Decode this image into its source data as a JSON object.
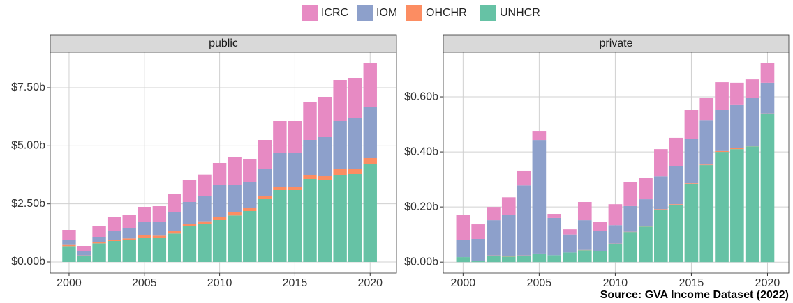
{
  "caption": "Source: GVA Income Dataset (2022)",
  "chart_data": [
    {
      "type": "bar",
      "title": "public",
      "x": [
        2000,
        2001,
        2002,
        2003,
        2004,
        2005,
        2006,
        2007,
        2008,
        2009,
        2010,
        2011,
        2012,
        2013,
        2014,
        2015,
        2016,
        2017,
        2018,
        2019,
        2020
      ],
      "series": [
        {
          "name": "ICRC",
          "color": "#e78ac3",
          "values": [
            0.42,
            0.21,
            0.45,
            0.6,
            0.54,
            0.66,
            0.66,
            0.78,
            0.96,
            0.93,
            0.96,
            1.2,
            1.02,
            1.23,
            1.35,
            1.41,
            1.62,
            1.74,
            1.77,
            1.74,
            1.89
          ]
        },
        {
          "name": "IOM",
          "color": "#8da0cb",
          "values": [
            0.23,
            0.2,
            0.22,
            0.36,
            0.46,
            0.57,
            0.61,
            0.84,
            0.93,
            1.08,
            1.38,
            1.2,
            1.11,
            1.17,
            1.47,
            1.44,
            1.5,
            1.68,
            2.07,
            2.16,
            2.22
          ]
        },
        {
          "name": "OHCHR",
          "color": "#fc8d62",
          "values": [
            0.05,
            0.03,
            0.06,
            0.06,
            0.08,
            0.09,
            0.09,
            0.1,
            0.12,
            0.1,
            0.12,
            0.13,
            0.12,
            0.15,
            0.15,
            0.15,
            0.18,
            0.18,
            0.24,
            0.24,
            0.24
          ]
        },
        {
          "name": "UNHCR",
          "color": "#66c2a5",
          "values": [
            0.68,
            0.25,
            0.8,
            0.9,
            0.93,
            1.05,
            1.04,
            1.22,
            1.53,
            1.65,
            1.8,
            2.0,
            2.19,
            2.7,
            3.09,
            3.09,
            3.57,
            3.51,
            3.75,
            3.78,
            4.23
          ]
        }
      ],
      "xlim": [
        1998.75,
        2021.75
      ],
      "xticks": [
        2000,
        2005,
        2010,
        2015,
        2020
      ],
      "ylim": [
        -0.48,
        9.03
      ],
      "yticks": [
        {
          "value": 0,
          "label": "$0.00b"
        },
        {
          "value": 2.5,
          "label": "$2.50b"
        },
        {
          "value": 5,
          "label": "$5.00b"
        },
        {
          "value": 7.5,
          "label": "$7.50b"
        }
      ],
      "grid": true
    },
    {
      "type": "bar",
      "title": "private",
      "x": [
        2000,
        2001,
        2002,
        2003,
        2004,
        2005,
        2006,
        2007,
        2008,
        2009,
        2010,
        2011,
        2012,
        2013,
        2014,
        2015,
        2016,
        2017,
        2018,
        2019,
        2020
      ],
      "series": [
        {
          "name": "ICRC",
          "color": "#e78ac3",
          "values": [
            0.091,
            0.053,
            0.048,
            0.065,
            0.054,
            0.033,
            0.015,
            0.019,
            0.066,
            0.033,
            0.076,
            0.088,
            0.078,
            0.099,
            0.102,
            0.104,
            0.081,
            0.101,
            0.081,
            0.068,
            0.073
          ]
        },
        {
          "name": "IOM",
          "color": "#8da0cb",
          "values": [
            0.063,
            0.081,
            0.128,
            0.149,
            0.254,
            0.412,
            0.135,
            0.065,
            0.108,
            0.072,
            0.067,
            0.093,
            0.098,
            0.119,
            0.139,
            0.162,
            0.162,
            0.149,
            0.157,
            0.172,
            0.111
          ]
        },
        {
          "name": "OHCHR",
          "color": "#fc8d62",
          "values": [
            0,
            0,
            0.001,
            0.001,
            0.001,
            0.001,
            0,
            0,
            0.001,
            0,
            0.001,
            0.001,
            0.001,
            0.002,
            0.002,
            0.002,
            0.002,
            0.003,
            0.003,
            0.003,
            0.003
          ]
        },
        {
          "name": "UNHCR",
          "color": "#66c2a5",
          "values": [
            0.018,
            0.003,
            0.023,
            0.02,
            0.023,
            0.03,
            0.025,
            0.035,
            0.043,
            0.04,
            0.066,
            0.109,
            0.129,
            0.19,
            0.208,
            0.284,
            0.352,
            0.4,
            0.41,
            0.42,
            0.537
          ]
        }
      ],
      "xlim": [
        1998.7,
        2021.4
      ],
      "xticks": [
        2000,
        2005,
        2010,
        2015,
        2020
      ],
      "ylim": [
        -0.04,
        0.762
      ],
      "yticks": [
        {
          "value": 0,
          "label": "$0.00b"
        },
        {
          "value": 0.2,
          "label": "$0.20b"
        },
        {
          "value": 0.4,
          "label": "$0.40b"
        },
        {
          "value": 0.6,
          "label": "$0.60b"
        }
      ],
      "grid": true
    }
  ]
}
